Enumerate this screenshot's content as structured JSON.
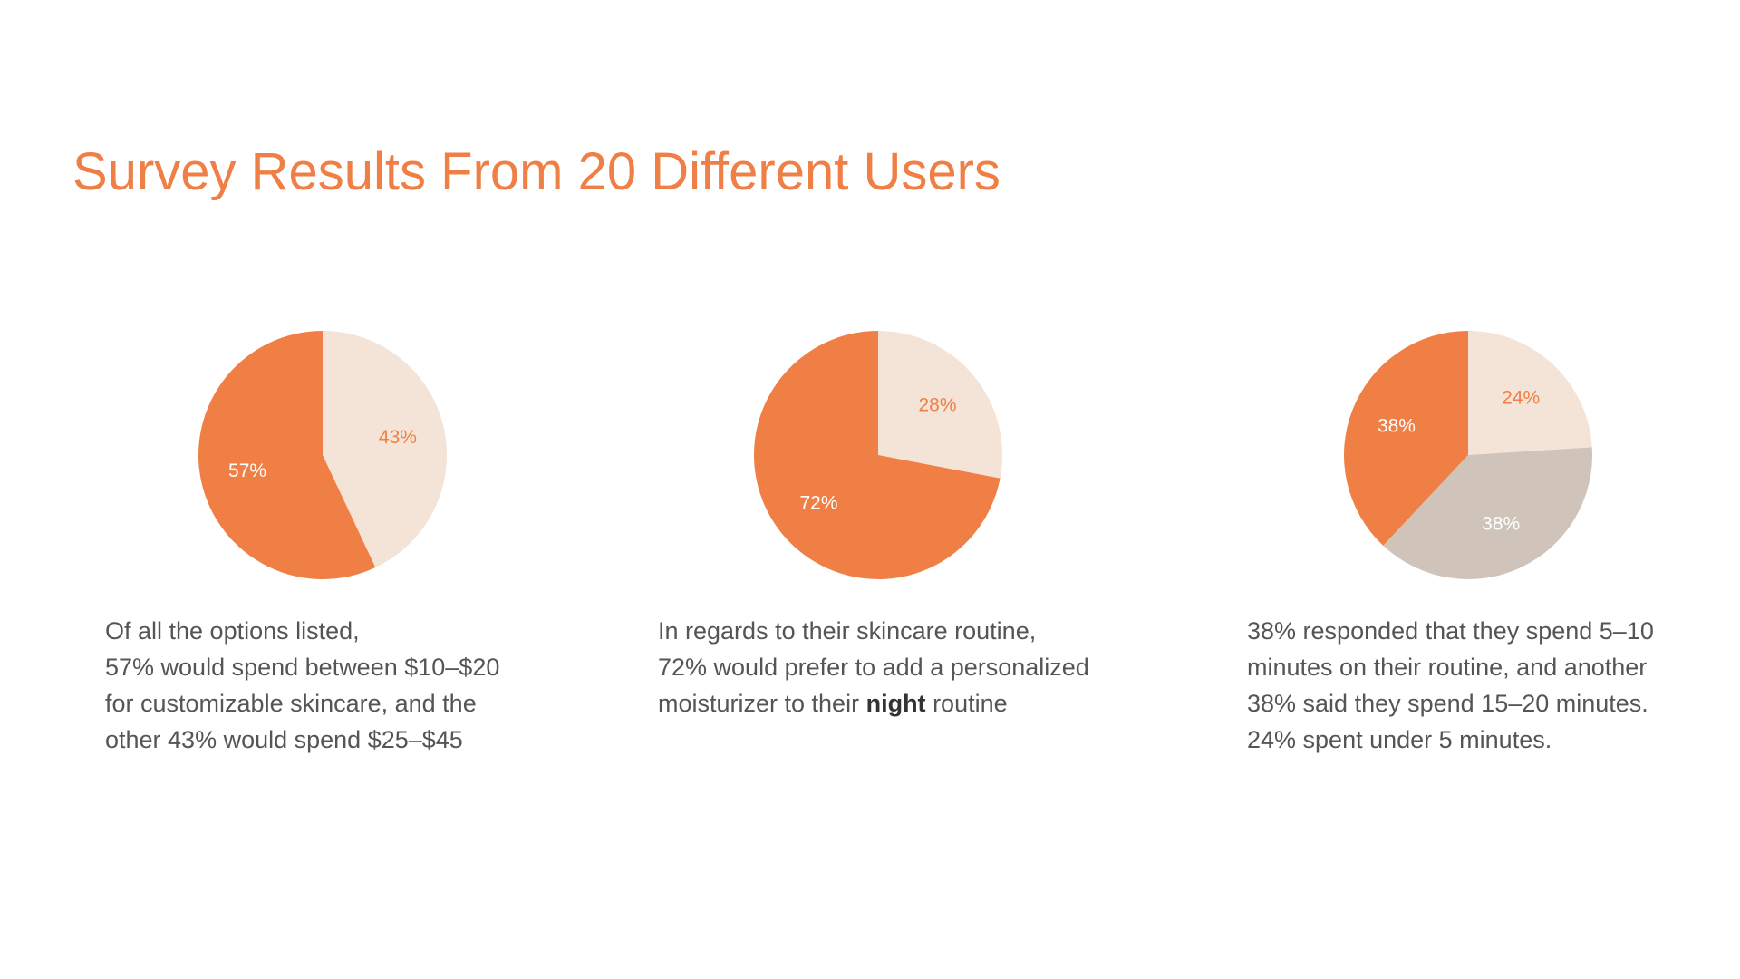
{
  "page": {
    "title": "Survey Results From 20 Different Users"
  },
  "colors": {
    "title": "#F07F45",
    "orange": "#F07F45",
    "peach": "#F4E3D7",
    "taupe": "#D0C4BA",
    "label_dark_bg": "#FFFFFF",
    "label_light_bg": "#F07F45",
    "caption_text": "#555555"
  },
  "chart_data": [
    {
      "type": "pie",
      "start": "top",
      "direction": "clockwise",
      "slices": [
        {
          "value": 43,
          "label": "43%",
          "fill": "#F4E3D7",
          "label_color": "#F07F45"
        },
        {
          "value": 57,
          "label": "57%",
          "fill": "#F07F45",
          "label_color": "#FFFFFF"
        }
      ],
      "caption": {
        "line1": "Of all the options listed,",
        "line2": "57% would spend between $10–$20",
        "line3": "for customizable skincare, and the",
        "line4": "other 43% would spend $25–$45"
      }
    },
    {
      "type": "pie",
      "start": "top",
      "direction": "clockwise",
      "slices": [
        {
          "value": 28,
          "label": "28%",
          "fill": "#F4E3D7",
          "label_color": "#F07F45"
        },
        {
          "value": 72,
          "label": "72%",
          "fill": "#F07F45",
          "label_color": "#FFFFFF"
        }
      ],
      "caption": {
        "line1": "In regards to their skincare routine,",
        "line2": "72% would prefer to add a personalized",
        "line3_before": "moisturizer to their ",
        "line3_bold": "night",
        "line3_after": " routine"
      }
    },
    {
      "type": "pie",
      "start": "top",
      "direction": "clockwise",
      "slices": [
        {
          "value": 24,
          "label": "24%",
          "fill": "#F4E3D7",
          "label_color": "#F07F45"
        },
        {
          "value": 38,
          "label": "38%",
          "fill": "#D0C4BA",
          "label_color": "#FFFFFF"
        },
        {
          "value": 38,
          "label": "38%",
          "fill": "#F07F45",
          "label_color": "#FFFFFF"
        }
      ],
      "caption": {
        "line1": "38% responded that they spend 5–10",
        "line2": "minutes on their routine, and another",
        "line3": "38% said they spend 15–20 minutes.",
        "line4": "24% spent under 5 minutes."
      }
    }
  ]
}
